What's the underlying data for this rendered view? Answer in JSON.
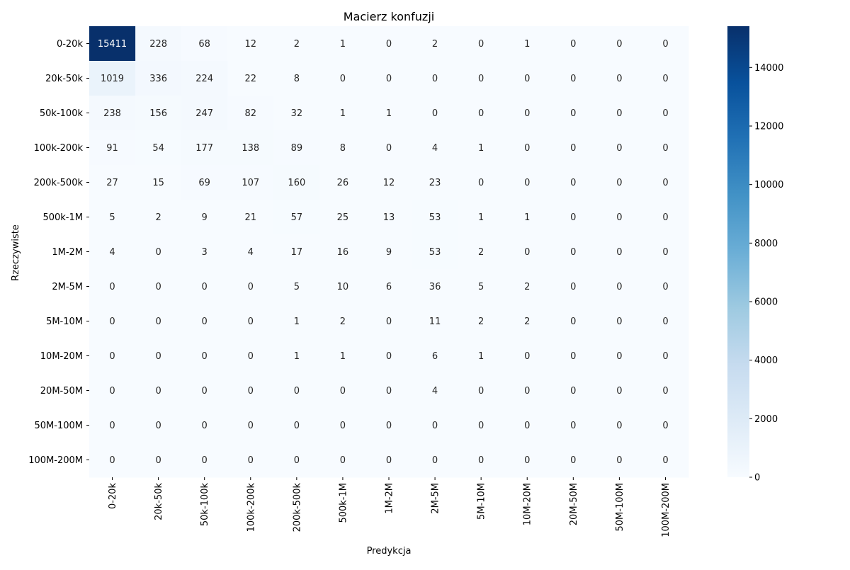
{
  "chart_data": {
    "type": "heatmap",
    "title": "Macierz konfuzji",
    "xlabel": "Predykcja",
    "ylabel": "Rzeczywiste",
    "x_categories": [
      "0-20k",
      "20k-50k",
      "50k-100k",
      "100k-200k",
      "200k-500k",
      "500k-1M",
      "1M-2M",
      "2M-5M",
      "5M-10M",
      "10M-20M",
      "20M-50M",
      "50M-100M",
      "100M-200M"
    ],
    "y_categories": [
      "0-20k",
      "20k-50k",
      "50k-100k",
      "100k-200k",
      "200k-500k",
      "500k-1M",
      "1M-2M",
      "2M-5M",
      "5M-10M",
      "10M-20M",
      "20M-50M",
      "50M-100M",
      "100M-200M"
    ],
    "values": [
      [
        15411,
        228,
        68,
        12,
        2,
        1,
        0,
        2,
        0,
        1,
        0,
        0,
        0
      ],
      [
        1019,
        336,
        224,
        22,
        8,
        0,
        0,
        0,
        0,
        0,
        0,
        0,
        0
      ],
      [
        238,
        156,
        247,
        82,
        32,
        1,
        1,
        0,
        0,
        0,
        0,
        0,
        0
      ],
      [
        91,
        54,
        177,
        138,
        89,
        8,
        0,
        4,
        1,
        0,
        0,
        0,
        0
      ],
      [
        27,
        15,
        69,
        107,
        160,
        26,
        12,
        23,
        0,
        0,
        0,
        0,
        0
      ],
      [
        5,
        2,
        9,
        21,
        57,
        25,
        13,
        53,
        1,
        1,
        0,
        0,
        0
      ],
      [
        4,
        0,
        3,
        4,
        17,
        16,
        9,
        53,
        2,
        0,
        0,
        0,
        0
      ],
      [
        0,
        0,
        0,
        0,
        5,
        10,
        6,
        36,
        5,
        2,
        0,
        0,
        0
      ],
      [
        0,
        0,
        0,
        0,
        1,
        2,
        0,
        11,
        2,
        2,
        0,
        0,
        0
      ],
      [
        0,
        0,
        0,
        0,
        1,
        1,
        0,
        6,
        1,
        0,
        0,
        0,
        0
      ],
      [
        0,
        0,
        0,
        0,
        0,
        0,
        0,
        4,
        0,
        0,
        0,
        0,
        0
      ],
      [
        0,
        0,
        0,
        0,
        0,
        0,
        0,
        0,
        0,
        0,
        0,
        0,
        0
      ],
      [
        0,
        0,
        0,
        0,
        0,
        0,
        0,
        0,
        0,
        0,
        0,
        0,
        0
      ]
    ],
    "colorbar": {
      "colormap": "Blues",
      "range": [
        0,
        15411
      ],
      "ticks": [
        0,
        2000,
        4000,
        6000,
        8000,
        10000,
        12000,
        14000
      ]
    },
    "grid": false,
    "legend": "colorbar-right"
  }
}
